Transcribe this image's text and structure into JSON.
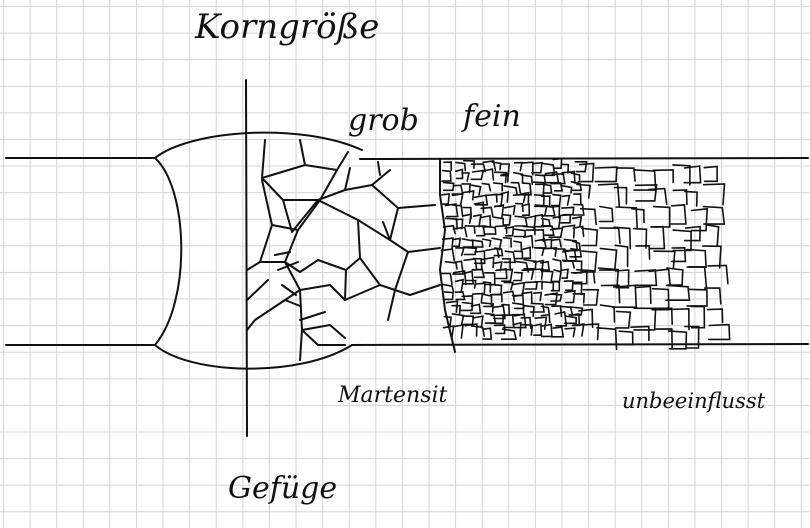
{
  "labels": {
    "title": "Korngröße",
    "grob": "grob",
    "fein": "fein",
    "martensit": "Martensit",
    "unbeeinflusst": "unbeeinflusst",
    "gefuege": "Gefüge"
  },
  "colors": {
    "ink": "#111111",
    "grid": "#d4d4d4",
    "background": "#ffffff"
  }
}
